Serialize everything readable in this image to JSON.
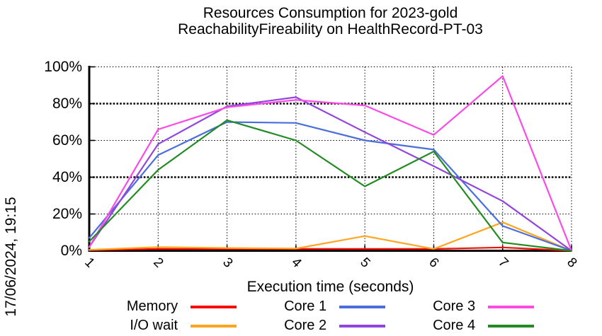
{
  "title": {
    "line1": "Resources Consumption for 2023-gold",
    "line2": "ReachabilityFireability on HealthRecord-PT-03"
  },
  "timestamp_label": "17/06/2024, 19:15",
  "chart_data": {
    "type": "line",
    "title": "Resources Consumption for 2023-gold ReachabilityFireability on HealthRecord-PT-03",
    "xlabel": "Execution time (seconds)",
    "ylabel": "",
    "x": [
      1,
      2,
      3,
      4,
      5,
      6,
      7,
      8
    ],
    "xlim": [
      1,
      8
    ],
    "ylim": [
      0,
      100
    ],
    "grid": true,
    "legend_position": "bottom",
    "x_tick_labels": [
      "1",
      "2",
      "3",
      "4",
      "5",
      "6",
      "7",
      "8"
    ],
    "y_tick_labels_top_down": [
      "100%",
      "80%",
      "60%",
      "40%",
      "20%",
      "0%"
    ],
    "series": [
      {
        "name": "Memory",
        "color": "#f80c00",
        "values": [
          0.3,
          1,
          1,
          1,
          1,
          1,
          1.8,
          0
        ]
      },
      {
        "name": "I/O wait",
        "color": "#ffa51e",
        "values": [
          0.5,
          2,
          1.5,
          1.2,
          8,
          1,
          15.5,
          0
        ]
      },
      {
        "name": "Core 1",
        "color": "#4a6edb",
        "values": [
          7,
          52,
          70,
          69.5,
          60,
          55,
          13.5,
          0
        ]
      },
      {
        "name": "Core 2",
        "color": "#9245dd",
        "values": [
          2,
          58,
          78.5,
          83.5,
          64.5,
          46,
          27,
          0
        ]
      },
      {
        "name": "Core 3",
        "color": "#fb4ae6",
        "values": [
          2,
          66,
          78,
          82,
          79,
          63,
          95,
          0
        ]
      },
      {
        "name": "Core 4",
        "color": "#238b23",
        "values": [
          5,
          44,
          71,
          60,
          35,
          54,
          4.5,
          0
        ]
      }
    ]
  }
}
